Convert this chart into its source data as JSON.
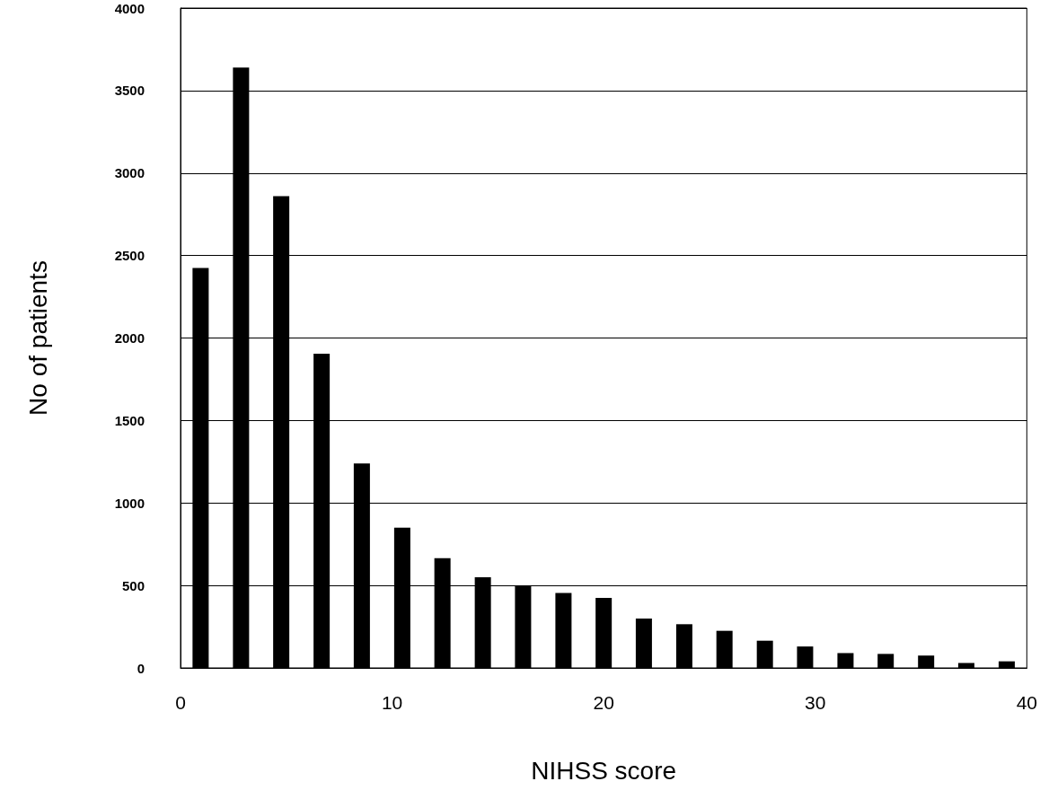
{
  "chart_data": {
    "type": "bar",
    "xlabel": "NIHSS score",
    "ylabel": "No of patients",
    "x": [
      0.95,
      2.86,
      4.76,
      6.67,
      8.57,
      10.48,
      12.38,
      14.29,
      16.19,
      18.1,
      20,
      21.9,
      23.81,
      25.71,
      27.62,
      29.52,
      31.43,
      33.33,
      35.24,
      37.14,
      39.05
    ],
    "values": [
      2425,
      3640,
      2860,
      1905,
      1240,
      850,
      665,
      550,
      495,
      455,
      425,
      300,
      265,
      225,
      165,
      130,
      90,
      85,
      75,
      30,
      40
    ],
    "color": "#000000",
    "xlim": [
      0,
      40
    ],
    "xticks": [
      0,
      10,
      20,
      30,
      40
    ],
    "ylim": [
      0,
      4000
    ],
    "yticks": [
      0,
      500,
      1000,
      1500,
      2000,
      2500,
      3000,
      3500,
      4000
    ],
    "grid": "y"
  }
}
